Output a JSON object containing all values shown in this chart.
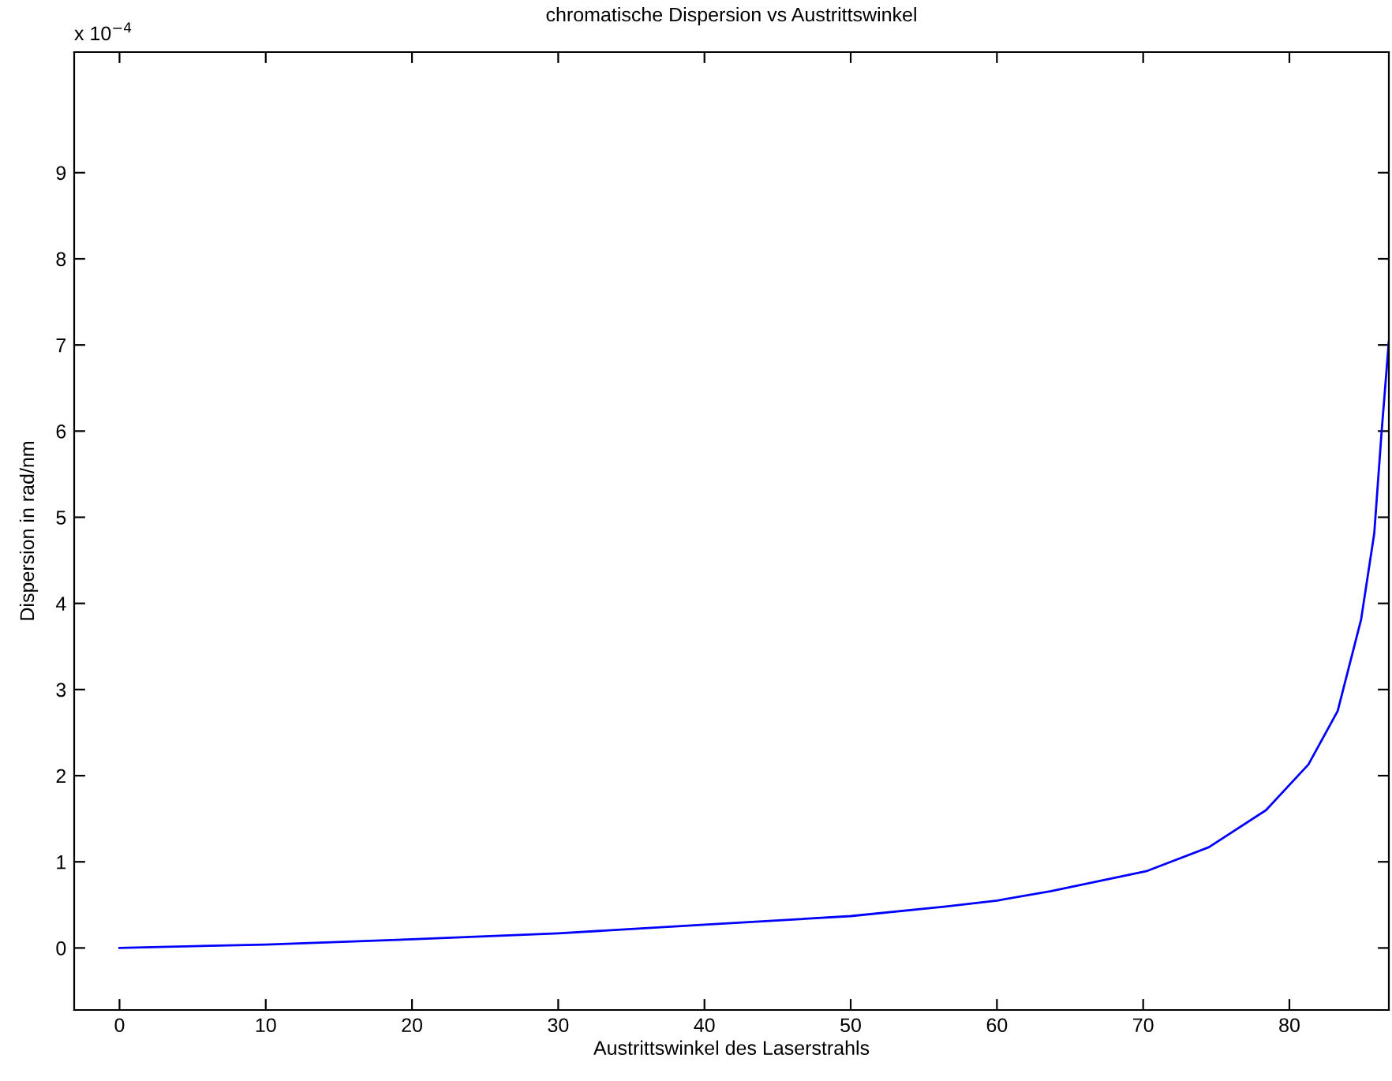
{
  "chart_data": {
    "type": "line",
    "title": "chromatische Dispersion vs Austrittswinkel",
    "xlabel": "Austrittswinkel des Laserstrahls",
    "ylabel": "Dispersion in rad/nm",
    "annotations": [
      "x 10$^{−4}$"
    ],
    "series": [
      {
        "color": "#0000ff",
        "x": [
          0,
          10,
          20,
          30,
          40,
          50,
          56.5,
          60,
          63.7,
          70.2,
          74.5,
          78.4,
          81.3,
          83.3,
          84.9,
          85.8,
          86.3,
          86.8
        ],
        "values": [
          0,
          0.04,
          0.1,
          0.17,
          0.27,
          0.37,
          0.48,
          0.55,
          0.66,
          0.89,
          1.17,
          1.6,
          2.13,
          2.75,
          3.81,
          4.81,
          5.98,
          7.04
        ]
      }
    ],
    "xlim": [
      -3.1,
      86.8
    ],
    "ylim": [
      -0.72,
      10.4
    ],
    "xticks": [
      0,
      10,
      20,
      30,
      40,
      50,
      60,
      70,
      80
    ],
    "yticks": [
      0,
      1,
      2,
      3,
      4,
      5,
      6,
      7,
      8,
      9
    ],
    "grid": false,
    "legend": false,
    "line_style": "solid",
    "marker": "none"
  }
}
